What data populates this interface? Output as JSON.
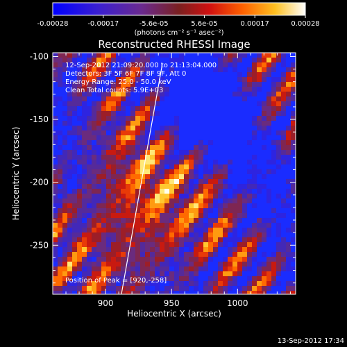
{
  "chart_data": {
    "type": "heatmap",
    "title": "Reconstructed RHESSI Image",
    "xlabel": "Heliocentric X (arcsec)",
    "ylabel": "Heliocentric Y (arcsec)",
    "xlim": [
      860,
      1044
    ],
    "ylim": [
      -289,
      -97
    ],
    "x_ticks": [
      900,
      950,
      1000
    ],
    "y_ticks": [
      -100,
      -150,
      -200,
      -250
    ],
    "colorbar": {
      "unit_label": "(photons cm⁻² s⁻¹ asec⁻²)",
      "range": [
        -0.00028,
        0.00028
      ],
      "ticks": [
        "-0.00028",
        "-0.00017",
        "-5.6e-05",
        "5.6e-05",
        "0.00017",
        "0.00028"
      ]
    },
    "annotations": [
      "12-Sep-2012 21:09:20.000 to 21:13:04.000",
      "Detectors: 3F 5F 6F 7F 8F 9F, Att 0",
      "Energy Range: 25.0 - 50.0 keV",
      "Clean    Total counts: 5.9E+03"
    ],
    "peak_label": "Position of Peak = [920,-258]",
    "peak_position": [
      920,
      -258
    ],
    "limb_line": [
      [
        912,
        -289
      ],
      [
        943,
        -106
      ]
    ],
    "timestamp": "13-Sep-2012 17:34"
  },
  "colors": {
    "background": "#000000",
    "axes": "#ffffff",
    "colormap": [
      "#0022ff",
      "#3a1fd0",
      "#5a2aa0",
      "#6a2a6a",
      "#c0201a",
      "#ff5a00",
      "#ffa000",
      "#ffe040",
      "#ffffff"
    ]
  }
}
